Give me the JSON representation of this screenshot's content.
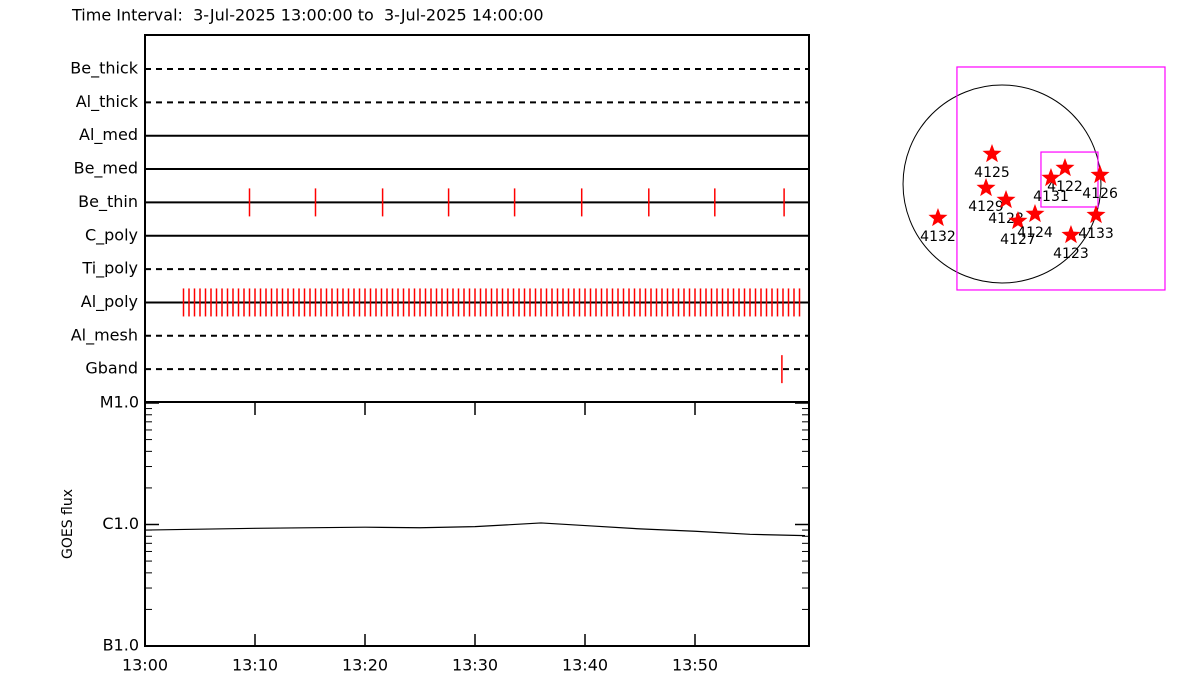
{
  "title": "Time Interval:  3-Jul-2025 13:00:00 to  3-Jul-2025 14:00:00",
  "chart_data": [
    {
      "type": "timeline",
      "color": "#ff0000",
      "xlim": [
        0,
        60
      ],
      "series": [
        {
          "name": "Be_thick",
          "style": "dashed",
          "values": []
        },
        {
          "name": "Al_thick",
          "style": "dashed",
          "values": []
        },
        {
          "name": "Al_med",
          "style": "solid",
          "values": []
        },
        {
          "name": "Be_med",
          "style": "solid",
          "values": []
        },
        {
          "name": "Be_thin",
          "style": "solid",
          "values": [
            9.5,
            15.5,
            21.6,
            27.6,
            33.6,
            39.7,
            45.8,
            51.8,
            58.1
          ]
        },
        {
          "name": "C_poly",
          "style": "solid",
          "values": []
        },
        {
          "name": "Ti_poly",
          "style": "dashed",
          "values": []
        },
        {
          "name": "Al_poly",
          "style": "solid",
          "values": [
            3.5,
            4,
            4.5,
            5,
            5.5,
            6,
            6.5,
            7,
            7.5,
            8,
            8.5,
            9,
            9.5,
            10,
            10.5,
            11,
            11.5,
            12,
            12.5,
            13,
            13.5,
            14,
            14.5,
            15,
            15.5,
            16,
            16.5,
            17,
            17.5,
            18,
            18.5,
            19,
            19.5,
            20,
            20.5,
            21,
            21.5,
            22,
            22.5,
            23,
            23.5,
            24,
            24.5,
            25,
            25.5,
            26,
            26.5,
            27,
            27.5,
            28,
            28.5,
            29,
            29.5,
            30,
            30.5,
            31,
            31.5,
            32,
            32.5,
            33,
            33.5,
            34,
            34.5,
            35,
            35.5,
            36,
            36.5,
            37,
            37.5,
            38,
            38.5,
            39,
            39.5,
            40,
            40.5,
            41,
            41.5,
            42,
            42.5,
            43,
            43.5,
            44,
            44.5,
            45,
            45.5,
            46,
            46.5,
            47,
            47.5,
            48,
            48.5,
            49,
            49.5,
            50,
            50.5,
            51,
            51.5,
            52,
            52.5,
            53,
            53.5,
            54,
            54.5,
            55,
            55.5,
            56,
            56.5,
            57,
            57.5,
            58,
            58.5,
            59,
            59.5
          ]
        },
        {
          "name": "Al_mesh",
          "style": "dashed",
          "values": []
        },
        {
          "name": "Gband",
          "style": "dashed",
          "values": [
            57.9
          ]
        }
      ]
    },
    {
      "type": "line",
      "y_label": "GOES flux",
      "log_y": true,
      "color": "#000000",
      "xlim": [
        0,
        60
      ],
      "xticks": [
        {
          "value": 0,
          "label": "13:00"
        },
        {
          "value": 10,
          "label": "13:10"
        },
        {
          "value": 20,
          "label": "13:20"
        },
        {
          "value": 30,
          "label": "13:30"
        },
        {
          "value": 40,
          "label": "13:40"
        },
        {
          "value": 50,
          "label": "13:50"
        }
      ],
      "ylim": [
        1e-07,
        1e-05
      ],
      "yticks": [
        {
          "value": 1e-07,
          "label": "B1.0"
        },
        {
          "value": 1e-06,
          "label": "C1.0"
        },
        {
          "value": 1e-05,
          "label": "M1.0"
        }
      ],
      "x": [
        0,
        10,
        20,
        25,
        30,
        36,
        40,
        45,
        50,
        55,
        60
      ],
      "values": [
        9e-07,
        9.3e-07,
        9.5e-07,
        9.4e-07,
        9.6e-07,
        1.03e-06,
        9.8e-07,
        9.2e-07,
        8.8e-07,
        8.3e-07,
        8.1e-07
      ]
    },
    {
      "type": "map",
      "sun_radius": 960,
      "marker_color": "#ff0000",
      "box_color": "#ff00ff",
      "boxes": [
        [
          -437,
          1135,
          1581,
          -1028
        ],
        [
          378,
          310,
          931,
          -223
        ]
      ],
      "labels": [
        "4125",
        "4129",
        "4122",
        "4131",
        "4126",
        "4128",
        "4127",
        "4124",
        "4133",
        "4123",
        "4132"
      ],
      "x": [
        -97,
        -155,
        611,
        475,
        951,
        39,
        155,
        320,
        912,
        669,
        -621
      ],
      "y": [
        291,
        -39,
        155,
        58,
        87,
        -155,
        -359,
        -291,
        -301,
        -495,
        -330
      ]
    }
  ]
}
